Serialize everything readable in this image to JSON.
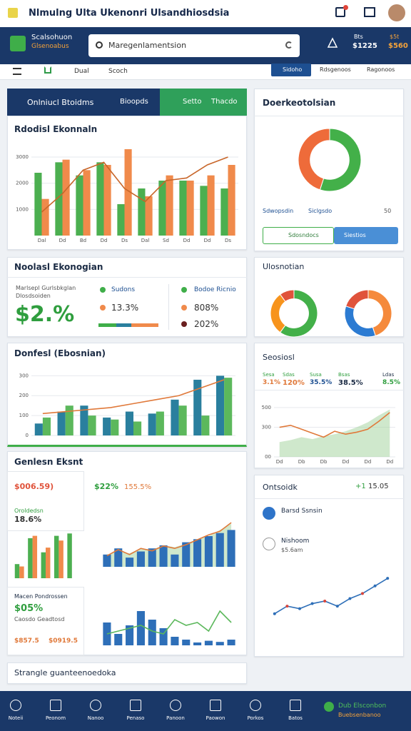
{
  "top_bar": {
    "title": "Nlmulng Ulta Ukenonri Ulsandhiosdsia"
  },
  "header": {
    "brand": "Scalsohuon",
    "brand_sub": "Glsenoabus",
    "search": "Maregenlamentsion",
    "stats": [
      {
        "label": "Bts",
        "value": "$1225"
      },
      {
        "label": "$5t",
        "value": "$560"
      }
    ]
  },
  "nav": {
    "items": [
      "Dual",
      "Scoch"
    ],
    "button": "Sidoho",
    "links": [
      "Rdsgenoos",
      "Ragonoos"
    ]
  },
  "tabs": [
    "Onlniucl Btoidms",
    "Bioopds",
    "Setto",
    "Thacdo"
  ],
  "revenue": {
    "type": "bar",
    "title": "Rdodisl Ekonnaln",
    "categories": [
      "Dal",
      "Dd",
      "Bd",
      "Dd",
      "Ds",
      "Dal",
      "Sd",
      "Dd",
      "Dd",
      "Ds"
    ],
    "ylim": [
      0,
      3600
    ],
    "yticks": [
      1000,
      2000,
      3000
    ],
    "grid": true,
    "series": [
      {
        "type": "bar",
        "color": "#4caf50",
        "values": [
          2400,
          2800,
          2300,
          2800,
          1200,
          1800,
          2100,
          2100,
          1900,
          1800
        ]
      },
      {
        "type": "bar",
        "color": "#f08a4b",
        "values": [
          1400,
          2900,
          2500,
          2700,
          3300,
          1500,
          2300,
          2100,
          2300,
          2700
        ]
      },
      {
        "type": "line",
        "color": "#c8662a",
        "values": [
          900,
          1600,
          2500,
          2800,
          1800,
          1300,
          2100,
          2200,
          2700,
          3000
        ]
      }
    ]
  },
  "summary": {
    "title": "Noolasl Ekonogian",
    "caption": [
      "Marlsepl Gurlsbkglan",
      "Dlosdsoiden"
    ],
    "big": "$2.%",
    "left": [
      "Sudons",
      "13.3%"
    ],
    "right": [
      "Bodoe Ricnio",
      "808%",
      "202%"
    ]
  },
  "donfesl": {
    "type": "bar",
    "title": "Donfesl (Ebosnian)",
    "ylim": [
      0,
      330
    ],
    "yticks": [
      0,
      100,
      200,
      300
    ],
    "grid": true,
    "series": [
      {
        "type": "bar",
        "color": "#2a7f9e",
        "values": [
          60,
          120,
          150,
          90,
          120,
          110,
          180,
          280,
          300
        ]
      },
      {
        "type": "bar",
        "color": "#5cb85c",
        "values": [
          90,
          150,
          100,
          80,
          70,
          120,
          150,
          100,
          290
        ]
      },
      {
        "type": "line",
        "color": "#e0793a",
        "values": [
          110,
          120,
          130,
          140,
          160,
          180,
          200,
          240,
          280
        ]
      }
    ]
  },
  "general": {
    "title": "Genlesn Eksnt",
    "left_top": {
      "value": "$006.59)",
      "label": "Oroldedsn",
      "change": "18.6%"
    },
    "left_bottom": {
      "title": "Macen Pondrossen",
      "value": "$05%",
      "label": "Caosdo Geadtosd",
      "stats": [
        "$857.5",
        "$0919.5"
      ]
    },
    "right": {
      "value": "$22%",
      "change": "155.5%"
    },
    "small_chart": {
      "type": "bar",
      "ylim": [
        0,
        100
      ],
      "series": [
        {
          "type": "bar",
          "color": "#4caf50",
          "values": [
            30,
            85,
            55,
            90,
            95
          ]
        },
        {
          "type": "bar",
          "color": "#f08a4b",
          "values": [
            25,
            90,
            65,
            80,
            0
          ]
        }
      ]
    },
    "top_chart": {
      "type": "bar",
      "ylim": [
        0,
        100
      ],
      "series": [
        {
          "type": "area",
          "color": "#a8d5a2",
          "values": [
            20,
            25,
            22,
            30,
            28,
            35,
            32,
            38,
            45,
            50,
            60,
            70
          ]
        },
        {
          "type": "bar",
          "color": "#2e6fb8",
          "values": [
            20,
            30,
            15,
            25,
            30,
            35,
            20,
            40,
            45,
            50,
            55,
            60
          ]
        },
        {
          "type": "line",
          "color": "#e0793a",
          "values": [
            18,
            28,
            20,
            30,
            26,
            34,
            30,
            36,
            44,
            52,
            58,
            72
          ]
        }
      ]
    },
    "bottom_chart": {
      "type": "bar",
      "ylim": [
        0,
        100
      ],
      "series": [
        {
          "type": "bar",
          "color": "#2e6fb8",
          "values": [
            40,
            20,
            35,
            60,
            45,
            30,
            15,
            10,
            5,
            8,
            6,
            10
          ]
        },
        {
          "type": "line",
          "color": "#5cb85c",
          "values": [
            20,
            25,
            30,
            35,
            25,
            20,
            45,
            35,
            40,
            25,
            60,
            40
          ]
        }
      ]
    }
  },
  "footer_card": {
    "title": "Strangle guanteenoedoka"
  },
  "right_top": {
    "title": "Doerkeotolsian",
    "donut": {
      "type": "pie",
      "values": [
        55,
        45
      ],
      "colors": [
        "#43b049",
        "#ee6b3a"
      ]
    },
    "legend": [
      "Sdwopsdin",
      "Siclgsdo"
    ],
    "count": "50",
    "buttons": [
      "Sdosndocs",
      "Siestios"
    ]
  },
  "right_mid": {
    "title": "Ulosnotian",
    "donuts": [
      {
        "type": "pie",
        "values": [
          60,
          30,
          10
        ],
        "colors": [
          "#43b049",
          "#f7941d",
          "#e0533b"
        ]
      },
      {
        "type": "pie",
        "values": [
          45,
          35,
          20
        ],
        "colors": [
          "#f58a3c",
          "#2c7bd2",
          "#e0533b"
        ]
      }
    ]
  },
  "right_stats": {
    "title": "Seosiosl",
    "stats": [
      {
        "label": "Sesa",
        "value": "3.1%"
      },
      {
        "label": "Sdas",
        "value": "120%"
      },
      {
        "label": "Susa",
        "value": "35.5%"
      },
      {
        "label": "Bsas",
        "value": "38.5%"
      },
      {
        "label": "Ldas",
        "value": "8.5%"
      }
    ],
    "chart": {
      "type": "line",
      "categories": [
        "Dd",
        null,
        "Db",
        null,
        "Db",
        null,
        "Dd",
        null,
        "Dd",
        null,
        "Dd"
      ],
      "ylim": [
        0,
        550
      ],
      "yticks": [
        {
          "value": 0,
          "label": "00"
        },
        300,
        500
      ],
      "grid": true,
      "series": [
        {
          "type": "area",
          "color": "#a8d5a2",
          "values": [
            150,
            170,
            200,
            180,
            210,
            230,
            260,
            300,
            350,
            420,
            480
          ]
        },
        {
          "type": "line",
          "color": "#e0793a",
          "values": [
            300,
            320,
            280,
            240,
            200,
            260,
            230,
            250,
            280,
            360,
            450
          ]
        }
      ]
    }
  },
  "right_list": {
    "title": "Ontsoidk",
    "badge": "+1",
    "value": "15.05",
    "items": [
      {
        "title": "Barsd Ssnsin"
      },
      {
        "title": "Nishoom",
        "sub": "$5.6am"
      }
    ],
    "chart": {
      "type": "line",
      "ylim": [
        0,
        130
      ],
      "series": [
        {
          "type": "line",
          "color": "#2e6fb8",
          "markers": true,
          "values": [
            40,
            55,
            50,
            60,
            65,
            55,
            70,
            80,
            95,
            110
          ]
        }
      ]
    }
  },
  "bottom_nav": {
    "items": [
      "Noteii",
      "Peonom",
      "Nanoo",
      "Penaso",
      "Panoon",
      "Paowon",
      "Porkos",
      "Batos"
    ],
    "brand": "Dub Elsconbon",
    "brand_sub": "Buebsenbanoo"
  }
}
